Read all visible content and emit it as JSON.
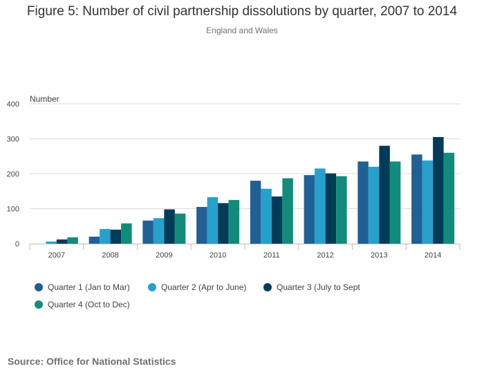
{
  "chart_data": {
    "type": "bar",
    "title": "Figure 5: Number of civil partnership dissolutions by quarter, 2007 to 2014",
    "subtitle": "England and Wales",
    "ylabel": "Number",
    "xlabel": "",
    "ylim": [
      0,
      400
    ],
    "yticks": [
      "0",
      "100",
      "200",
      "300",
      "400"
    ],
    "grid": true,
    "legend_position": "bottom",
    "categories": [
      "2007",
      "2008",
      "2009",
      "2010",
      "2011",
      "2012",
      "2013",
      "2014"
    ],
    "series": [
      {
        "name": "Quarter 1 (Jan to Mar)",
        "color": "#206095",
        "values": [
          0,
          20,
          66,
          105,
          180,
          196,
          235,
          255
        ]
      },
      {
        "name": "Quarter 2 (Apr to June)",
        "color": "#27a0cc",
        "values": [
          6,
          42,
          73,
          133,
          157,
          215,
          220,
          238
        ]
      },
      {
        "name": "Quarter 3 (July to Sept",
        "color": "#003c57",
        "values": [
          12,
          40,
          98,
          116,
          135,
          201,
          280,
          305
        ]
      },
      {
        "name": "Quarter 4 (Oct to Dec)",
        "color": "#118c7b",
        "values": [
          18,
          58,
          86,
          125,
          187,
          193,
          235,
          260
        ]
      }
    ]
  },
  "source": "Source: Office for National Statistics"
}
